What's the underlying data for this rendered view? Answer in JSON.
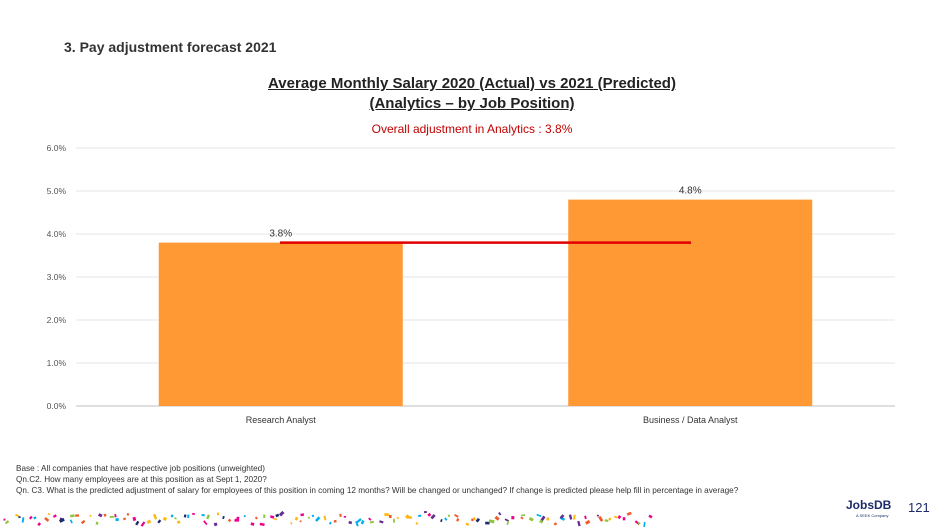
{
  "section_title": "3. Pay adjustment forecast 2021",
  "chart_data": {
    "type": "bar",
    "title_line1": "Average Monthly Salary 2020 (Actual) vs 2021 (Predicted)",
    "title_line2": "(Analytics – by Job Position)",
    "subtitle": "Overall adjustment in Analytics : 3.8%",
    "categories": [
      "Research Analyst",
      "Business / Data Analyst"
    ],
    "values": [
      3.8,
      4.8
    ],
    "data_labels": [
      "3.8%",
      "4.8%"
    ],
    "ylim": [
      0,
      6
    ],
    "yticks": [
      "0.0%",
      "1.0%",
      "2.0%",
      "3.0%",
      "4.0%",
      "5.0%",
      "6.0%"
    ],
    "reference_line": 3.8,
    "grid": true,
    "bar_color": "#ff9933",
    "reference_color": "#e00000"
  },
  "notes": [
    "Base : All companies that have respective job positions (unweighted)",
    "Qn.C2. How many employees are at this position as at Sept 1, 2020?",
    "Qn. C3. What is the predicted adjustment of salary for employees of this position in coming 12 months? Will be changed or unchanged?  If change is predicted please help fill in percentage in average?"
  ],
  "brand": "JobsDB",
  "brand_sub": "A SEEK Company",
  "page_number": "121"
}
